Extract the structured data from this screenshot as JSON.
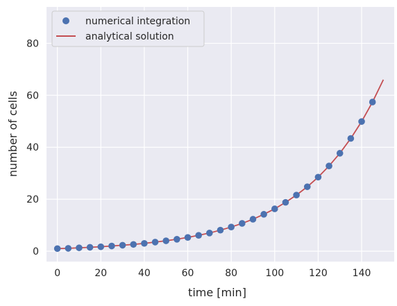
{
  "chart_data": {
    "type": "line",
    "xlabel": "time [min]",
    "ylabel": "number of cells",
    "xlim": [
      -5,
      155
    ],
    "ylim": [
      -4,
      94
    ],
    "xticks": [
      0,
      20,
      40,
      60,
      80,
      100,
      120,
      140
    ],
    "yticks": [
      0,
      20,
      40,
      60,
      80
    ],
    "grid": true,
    "legend_position": "top-left",
    "series": [
      {
        "name": "numerical integration",
        "kind": "scatter",
        "color": "#4c72b0",
        "x": [
          0,
          5,
          10,
          15,
          20,
          25,
          30,
          35,
          40,
          45,
          50,
          55,
          60,
          65,
          70,
          75,
          80,
          85,
          90,
          95,
          100,
          105,
          110,
          115,
          120,
          125,
          130,
          135,
          140,
          145
        ],
        "y": [
          1.0,
          1.1,
          1.3,
          1.5,
          1.7,
          2.0,
          2.3,
          2.6,
          3.0,
          3.5,
          4.0,
          4.6,
          5.3,
          6.1,
          7.0,
          8.1,
          9.3,
          10.7,
          12.3,
          14.2,
          16.3,
          18.8,
          21.6,
          24.8,
          28.5,
          32.8,
          37.7,
          43.4,
          49.9,
          57.4
        ]
      },
      {
        "name": "analytical solution",
        "kind": "line",
        "color": "#c44e52",
        "x": [
          0,
          5,
          10,
          15,
          20,
          25,
          30,
          35,
          40,
          45,
          50,
          55,
          60,
          65,
          70,
          75,
          80,
          85,
          90,
          95,
          100,
          105,
          110,
          115,
          120,
          125,
          130,
          135,
          140,
          145,
          150
        ],
        "y": [
          1.0,
          1.1,
          1.3,
          1.5,
          1.7,
          2.0,
          2.3,
          2.6,
          3.0,
          3.5,
          4.0,
          4.6,
          5.3,
          6.1,
          7.0,
          8.1,
          9.3,
          10.7,
          12.3,
          14.2,
          16.3,
          18.8,
          21.6,
          24.8,
          28.5,
          32.8,
          37.7,
          43.4,
          49.9,
          57.4,
          66.0
        ]
      }
    ]
  },
  "colors": {
    "plot_background": "#eaeaf2",
    "grid": "#ffffff",
    "text": "#262626"
  }
}
